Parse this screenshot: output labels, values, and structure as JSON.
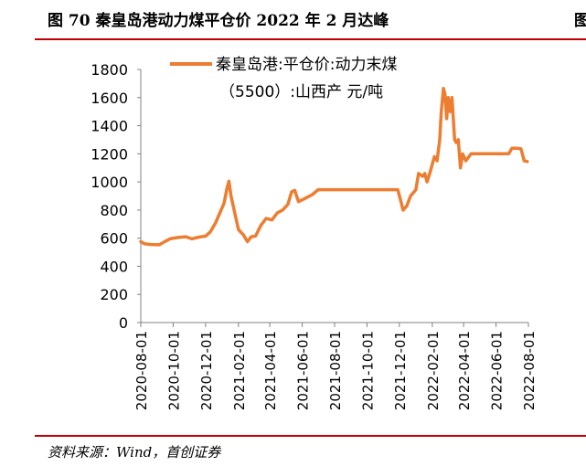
{
  "page": {
    "title": "图 70  秦皇岛港动力煤平仓价 2022 年 2 月达峰",
    "title_right_fragment": "图",
    "source": "资料来源：Wind，首创证券"
  },
  "chart_data": {
    "type": "line",
    "legend": {
      "label_line1": "秦皇岛港:平仓价:动力末煤",
      "label_line2": "（5500）:山西产 元/吨",
      "placement": "top"
    },
    "ylim": [
      0,
      1800
    ],
    "yticks": [
      "0",
      "200",
      "400",
      "600",
      "800",
      "1000",
      "1200",
      "1400",
      "1600",
      "1800"
    ],
    "xticks": [
      "2020-08-01",
      "2020-10-01",
      "2020-12-01",
      "2021-02-01",
      "2021-04-01",
      "2021-06-01",
      "2021-08-01",
      "2021-10-01",
      "2021-12-01",
      "2022-02-01",
      "2022-04-01",
      "2022-06-01",
      "2022-08-01"
    ],
    "color": "#ED7D31",
    "series": [
      {
        "points": [
          [
            "2020-08-01",
            575
          ],
          [
            "2020-08-08",
            560
          ],
          [
            "2020-08-20",
            555
          ],
          [
            "2020-09-05",
            553
          ],
          [
            "2020-09-15",
            575
          ],
          [
            "2020-09-25",
            595
          ],
          [
            "2020-10-10",
            605
          ],
          [
            "2020-10-25",
            610
          ],
          [
            "2020-11-05",
            595
          ],
          [
            "2020-11-15",
            605
          ],
          [
            "2020-12-01",
            615
          ],
          [
            "2020-12-10",
            645
          ],
          [
            "2020-12-20",
            710
          ],
          [
            "2020-12-28",
            780
          ],
          [
            "2021-01-05",
            850
          ],
          [
            "2021-01-10",
            950
          ],
          [
            "2021-01-14",
            1005
          ],
          [
            "2021-01-18",
            900
          ],
          [
            "2021-01-25",
            780
          ],
          [
            "2021-02-01",
            660
          ],
          [
            "2021-02-10",
            625
          ],
          [
            "2021-02-18",
            575
          ],
          [
            "2021-02-25",
            610
          ],
          [
            "2021-03-05",
            615
          ],
          [
            "2021-03-15",
            690
          ],
          [
            "2021-03-25",
            740
          ],
          [
            "2021-04-05",
            730
          ],
          [
            "2021-04-15",
            780
          ],
          [
            "2021-04-25",
            800
          ],
          [
            "2021-05-05",
            840
          ],
          [
            "2021-05-12",
            930
          ],
          [
            "2021-05-18",
            940
          ],
          [
            "2021-05-25",
            860
          ],
          [
            "2021-06-05",
            880
          ],
          [
            "2021-06-20",
            910
          ],
          [
            "2021-07-01",
            945
          ],
          [
            "2021-08-01",
            945
          ],
          [
            "2021-09-01",
            945
          ],
          [
            "2021-10-01",
            945
          ],
          [
            "2021-11-01",
            945
          ],
          [
            "2021-11-28",
            945
          ],
          [
            "2021-12-04",
            860
          ],
          [
            "2021-12-08",
            800
          ],
          [
            "2021-12-15",
            830
          ],
          [
            "2021-12-22",
            900
          ],
          [
            "2022-01-01",
            945
          ],
          [
            "2022-01-06",
            1060
          ],
          [
            "2022-01-10",
            1050
          ],
          [
            "2022-01-14",
            1040
          ],
          [
            "2022-01-18",
            1060
          ],
          [
            "2022-01-22",
            1000
          ],
          [
            "2022-01-28",
            1070
          ],
          [
            "2022-02-05",
            1180
          ],
          [
            "2022-02-10",
            1150
          ],
          [
            "2022-02-15",
            1300
          ],
          [
            "2022-02-18",
            1500
          ],
          [
            "2022-02-22",
            1665
          ],
          [
            "2022-02-25",
            1620
          ],
          [
            "2022-02-28",
            1450
          ],
          [
            "2022-03-03",
            1600
          ],
          [
            "2022-03-07",
            1500
          ],
          [
            "2022-03-10",
            1600
          ],
          [
            "2022-03-15",
            1300
          ],
          [
            "2022-03-18",
            1280
          ],
          [
            "2022-03-22",
            1300
          ],
          [
            "2022-03-26",
            1100
          ],
          [
            "2022-03-30",
            1200
          ],
          [
            "2022-04-05",
            1150
          ],
          [
            "2022-04-15",
            1200
          ],
          [
            "2022-05-01",
            1200
          ],
          [
            "2022-06-01",
            1200
          ],
          [
            "2022-06-25",
            1200
          ],
          [
            "2022-07-01",
            1240
          ],
          [
            "2022-07-10",
            1240
          ],
          [
            "2022-07-18",
            1235
          ],
          [
            "2022-07-24",
            1150
          ],
          [
            "2022-07-30",
            1145
          ]
        ]
      }
    ]
  }
}
